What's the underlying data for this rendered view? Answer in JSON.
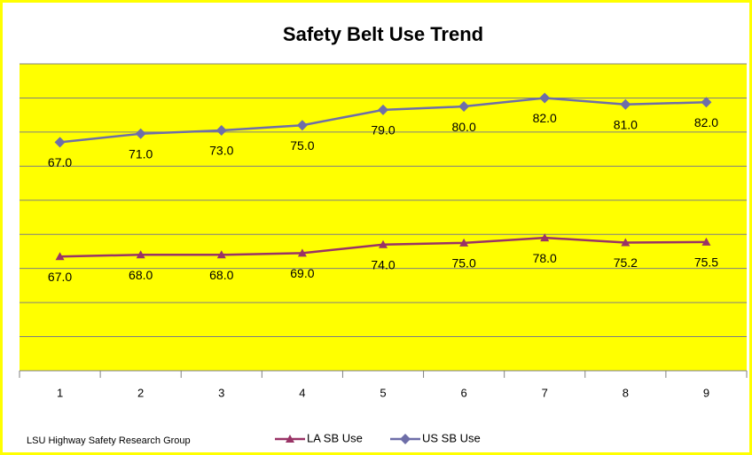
{
  "chart_data": {
    "type": "line",
    "stacked": true,
    "title": "Safety Belt Use Trend",
    "categories": [
      "1",
      "2",
      "3",
      "4",
      "5",
      "6",
      "7",
      "8",
      "9"
    ],
    "series": [
      {
        "name": "LA SB Use",
        "color": "#993366",
        "marker": "triangle",
        "values": [
          67,
          68,
          68,
          69,
          74,
          75,
          78,
          75.2,
          75.5
        ],
        "value_labels": [
          "67.0",
          "68.0",
          "68.0",
          "69.0",
          "74.0",
          "75.0",
          "78.0",
          "75.2",
          "75.5"
        ]
      },
      {
        "name": "US SB Use",
        "color": "#6e6ea8",
        "marker": "diamond",
        "values": [
          67,
          71,
          73,
          75,
          79,
          80,
          82,
          81,
          82
        ],
        "value_labels": [
          "67.0",
          "71.0",
          "73.0",
          "75.0",
          "79.0",
          "80.0",
          "82.0",
          "81.0",
          "82.0"
        ]
      }
    ],
    "ylim": [
      0,
      180
    ],
    "yticks": [
      0,
      20,
      40,
      60,
      80,
      100,
      120,
      140,
      160,
      180
    ],
    "grid": true,
    "legend": "bottom",
    "plot_background": "#ffff00",
    "footnote": "LSU Highway Safety Research Group"
  }
}
